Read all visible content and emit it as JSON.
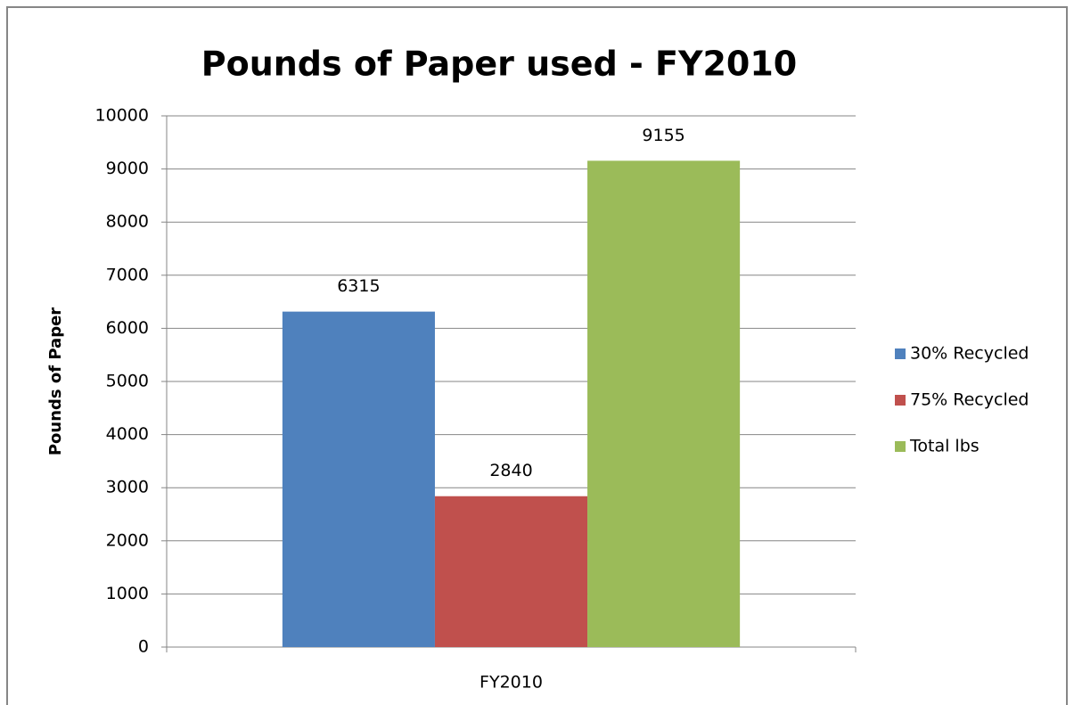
{
  "chart_data": {
    "type": "bar",
    "title": "Pounds of Paper used - FY2010",
    "y_label": "Pounds of Paper",
    "categories": [
      "FY2010"
    ],
    "series": [
      {
        "name": "30% Recycled",
        "color": "#4f81bd",
        "values": [
          6315
        ]
      },
      {
        "name": "75% Recycled",
        "color": "#c0504d",
        "values": [
          2840
        ]
      },
      {
        "name": "Total lbs",
        "color": "#9bbb59",
        "values": [
          9155
        ]
      }
    ],
    "ylim": [
      0,
      10000
    ],
    "yticks": [
      0,
      1000,
      2000,
      3000,
      4000,
      5000,
      6000,
      7000,
      8000,
      9000,
      10000
    ],
    "grid": true,
    "legend": "right"
  }
}
